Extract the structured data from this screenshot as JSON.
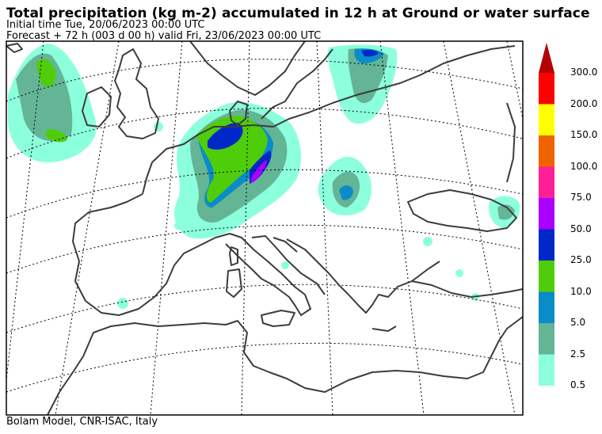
{
  "header": {
    "title": "Total precipitation (kg m-2) accumulated in  12 h at Ground or water surface",
    "initial_time": "Initial time  Tue, 20/06/2023  00:00 UTC",
    "forecast": "Forecast  +  72 h  (003 d 00 h)  valid Fri, 23/06/2023 00:00 UTC"
  },
  "footer": {
    "credit": "Bolam Model, CNR-ISAC, Italy"
  },
  "legend": {
    "levels": [
      {
        "label": "0.5",
        "color": "#8cffdc"
      },
      {
        "label": "2.5",
        "color": "#64b496"
      },
      {
        "label": "5.0",
        "color": "#0a8cc8"
      },
      {
        "label": "10.0",
        "color": "#50cd0a"
      },
      {
        "label": "25.0",
        "color": "#0028c8"
      },
      {
        "label": "50.0",
        "color": "#aa00ff"
      },
      {
        "label": "75.0",
        "color": "#ff1e96"
      },
      {
        "label": "100.0",
        "color": "#f06400"
      },
      {
        "label": "150.0",
        "color": "#ffff00"
      },
      {
        "label": "200.0",
        "color": "#ff0000"
      },
      {
        "label": "300.0",
        "color": "#b40000"
      }
    ]
  },
  "colors": {
    "coastline": "#3c3c3c",
    "grid": "#000000",
    "frame": "#000000"
  }
}
